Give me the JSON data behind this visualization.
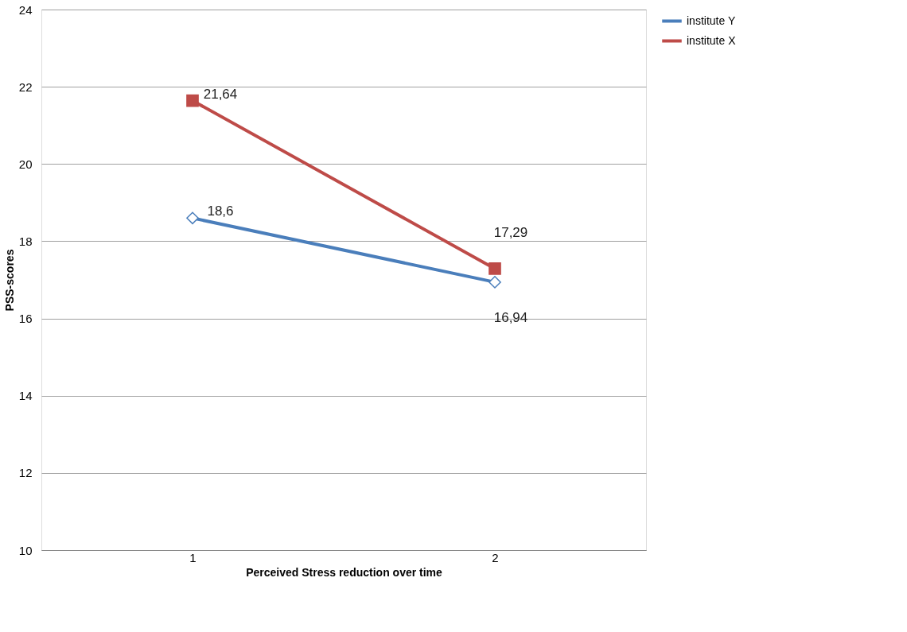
{
  "chart_data": {
    "type": "line",
    "xlabel": "Perceived Stress reduction over time",
    "ylabel": "PSS-scores",
    "categories": [
      "1",
      "2"
    ],
    "series": [
      {
        "name": "institute Y",
        "color": "#4a7ebb",
        "marker": "diamond",
        "values": [
          18.6,
          16.94
        ],
        "value_labels": [
          "18,6",
          "16,94"
        ]
      },
      {
        "name": "institute X",
        "color": "#be4b48",
        "marker": "square",
        "values": [
          21.64,
          17.29
        ],
        "value_labels": [
          "21,64",
          "17,29"
        ]
      }
    ],
    "ylim": [
      10,
      24
    ],
    "yticks": [
      10,
      12,
      14,
      16,
      18,
      20,
      22,
      24
    ],
    "grid": "y",
    "legend": "right"
  }
}
